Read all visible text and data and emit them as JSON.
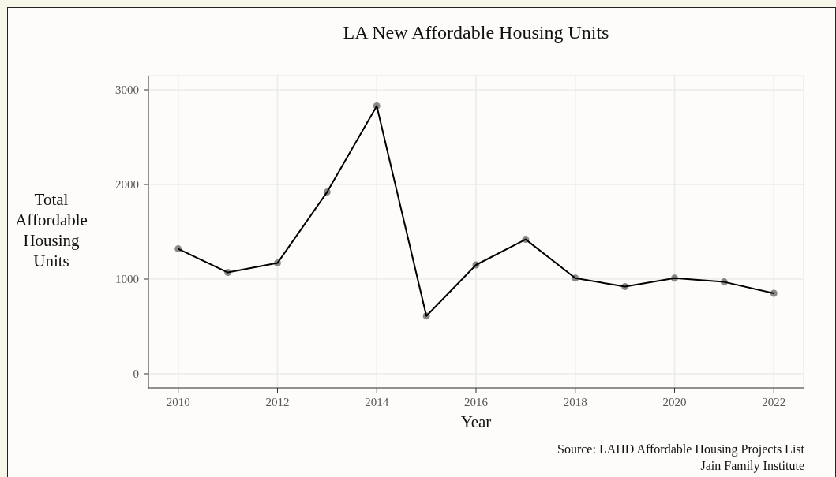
{
  "chart_data": {
    "type": "line",
    "title": "LA New Affordable Housing Units",
    "xlabel": "Year",
    "ylabel": "Total\nAffordable\nHousing\nUnits",
    "annotations": [
      "Source: LAHD Affordable Housing Projects List",
      "Jain Family Institute"
    ],
    "x": [
      2010,
      2011,
      2012,
      2013,
      2014,
      2015,
      2016,
      2017,
      2018,
      2019,
      2020,
      2021,
      2022
    ],
    "series": [
      {
        "color": "#000000",
        "values": [
          1320,
          1070,
          1170,
          1920,
          2830,
          610,
          1150,
          1420,
          1010,
          920,
          1010,
          970,
          850
        ]
      }
    ],
    "xlim": [
      2009.4,
      2022.6
    ],
    "xticks": [
      2010,
      2012,
      2014,
      2016,
      2018,
      2020,
      2022
    ],
    "ylim": [
      -150,
      3150
    ],
    "yticks": [
      0,
      1000,
      2000,
      3000
    ],
    "grid": true,
    "legend": false,
    "marker": "circle",
    "line_style": "solid"
  }
}
